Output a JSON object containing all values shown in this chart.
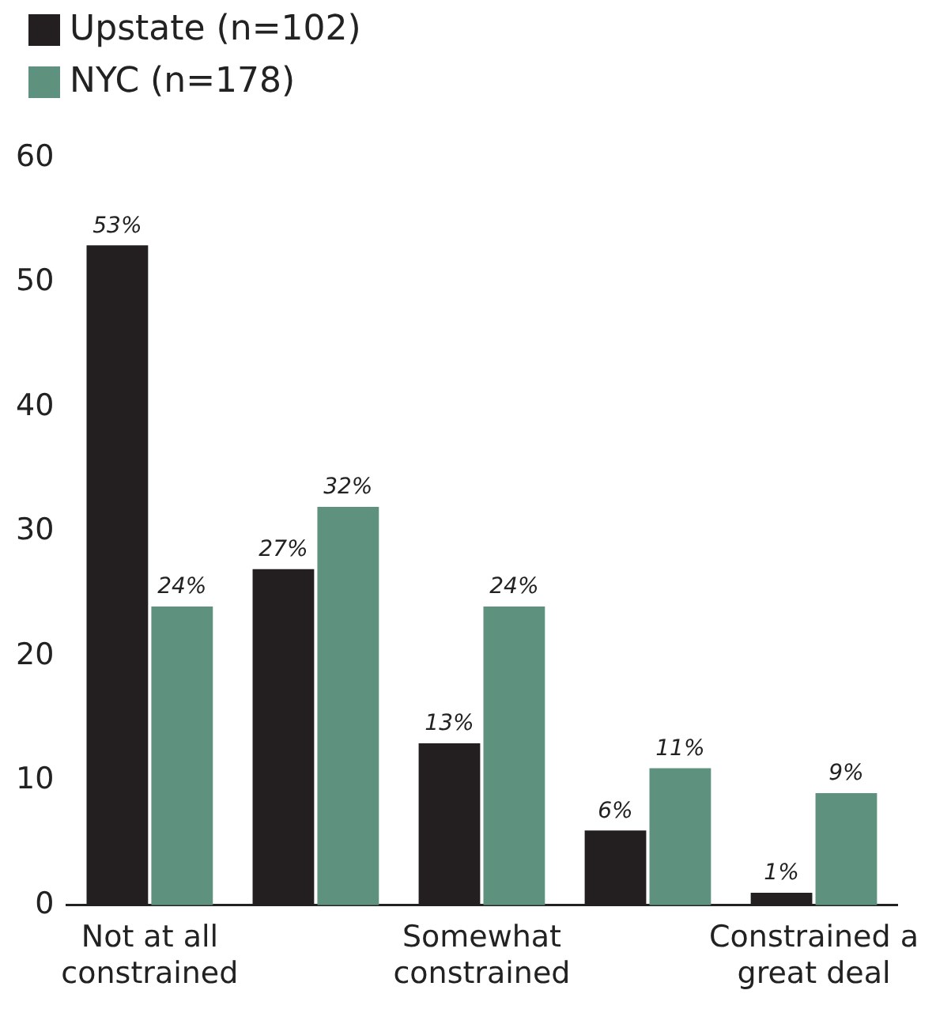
{
  "chart_data": {
    "type": "bar",
    "categories": [
      "Not at all constrained",
      null,
      "Somewhat constrained",
      null,
      "Constrained a great deal"
    ],
    "series": [
      {
        "name": "Upstate (n=102)",
        "color": "#231f20",
        "values": [
          53,
          27,
          13,
          6,
          1
        ],
        "value_labels": [
          "53%",
          "27%",
          "13%",
          "6%",
          "1%"
        ]
      },
      {
        "name": "NYC (n=178)",
        "color": "#5e917e",
        "values": [
          24,
          32,
          24,
          11,
          9
        ],
        "value_labels": [
          "24%",
          "32%",
          "24%",
          "11%",
          "9%"
        ]
      }
    ],
    "ylim": [
      0,
      60
    ],
    "yticks": [
      0,
      10,
      20,
      30,
      40,
      50,
      60
    ],
    "grid": false,
    "legend": "top left"
  }
}
